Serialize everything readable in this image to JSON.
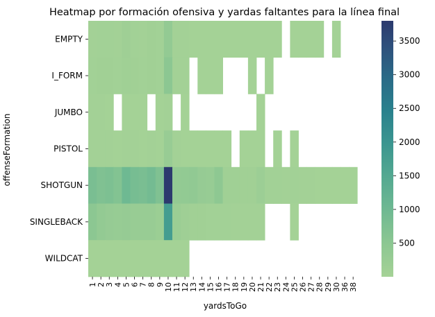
{
  "chart_data": {
    "type": "heatmap",
    "title": "Heatmap por formación ofensiva y yardas faltantes para la línea final",
    "xlabel": "yardsToGo",
    "ylabel": "offenseFormation",
    "x_categories": [
      "1",
      "2",
      "3",
      "4",
      "5",
      "6",
      "7",
      "8",
      "9",
      "10",
      "11",
      "12",
      "13",
      "14",
      "15",
      "16",
      "17",
      "18",
      "19",
      "20",
      "21",
      "22",
      "23",
      "24",
      "25",
      "26",
      "27",
      "28",
      "29",
      "30",
      "36",
      "38"
    ],
    "y_categories": [
      "EMPTY",
      "I_FORM",
      "JUMBO",
      "PISTOL",
      "SHOTGUN",
      "SINGLEBACK",
      "WILDCAT"
    ],
    "values": [
      [
        40,
        60,
        50,
        40,
        120,
        60,
        40,
        80,
        60,
        350,
        40,
        30,
        20,
        20,
        20,
        20,
        20,
        10,
        10,
        10,
        10,
        10,
        10,
        null,
        10,
        10,
        10,
        10,
        null,
        10,
        null,
        null
      ],
      [
        60,
        80,
        70,
        60,
        90,
        70,
        60,
        70,
        50,
        500,
        40,
        30,
        null,
        20,
        20,
        20,
        null,
        null,
        null,
        10,
        null,
        10,
        null,
        null,
        null,
        null,
        null,
        null,
        null,
        null,
        null,
        null
      ],
      [
        30,
        30,
        20,
        null,
        20,
        20,
        20,
        null,
        10,
        30,
        null,
        10,
        null,
        null,
        null,
        null,
        null,
        null,
        null,
        null,
        10,
        null,
        null,
        null,
        null,
        null,
        null,
        null,
        null,
        null,
        null,
        null
      ],
      [
        30,
        40,
        30,
        20,
        30,
        30,
        20,
        30,
        20,
        250,
        30,
        20,
        10,
        10,
        10,
        10,
        10,
        null,
        10,
        10,
        10,
        null,
        10,
        null,
        10,
        null,
        null,
        null,
        null,
        null,
        null,
        null
      ],
      [
        800,
        700,
        750,
        650,
        1000,
        850,
        800,
        900,
        700,
        3800,
        350,
        380,
        400,
        300,
        280,
        450,
        100,
        90,
        80,
        70,
        170,
        60,
        50,
        40,
        50,
        40,
        30,
        20,
        20,
        20,
        20,
        20
      ],
      [
        500,
        350,
        300,
        280,
        300,
        250,
        250,
        250,
        200,
        1800,
        200,
        120,
        80,
        70,
        60,
        60,
        50,
        40,
        40,
        30,
        30,
        null,
        null,
        null,
        20,
        null,
        null,
        null,
        null,
        null,
        null,
        null
      ],
      [
        10,
        10,
        10,
        10,
        10,
        10,
        10,
        10,
        10,
        10,
        10,
        10,
        null,
        null,
        null,
        null,
        null,
        null,
        null,
        null,
        null,
        null,
        null,
        null,
        null,
        null,
        null,
        null,
        null,
        null,
        null,
        null
      ]
    ],
    "colorbar": {
      "ticks": [
        500,
        1000,
        1500,
        2000,
        2500,
        3000,
        3500
      ],
      "min": 0,
      "max": 3800,
      "colormap": "crest"
    },
    "grid": false,
    "legend": "colorbar-right"
  },
  "colors": {
    "missing": "#ffffff",
    "background": "#ffffff"
  }
}
